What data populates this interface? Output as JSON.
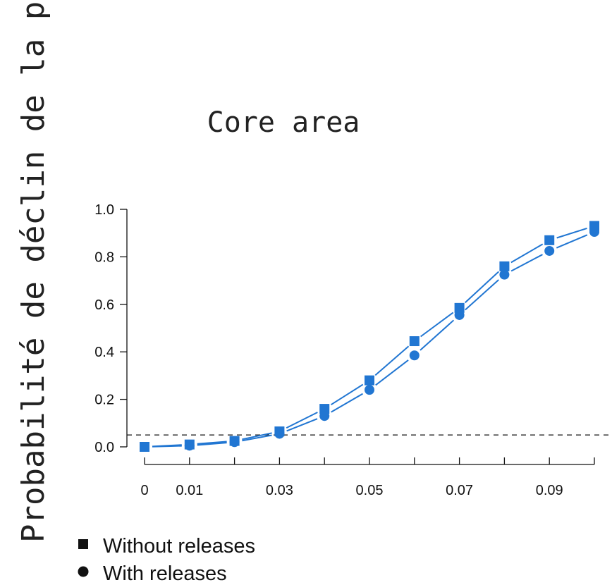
{
  "chart_data": {
    "type": "line",
    "title": "Core area",
    "ylabel": "Probabilité de déclin de la population",
    "xlabel": "",
    "x": [
      0,
      0.01,
      0.02,
      0.03,
      0.04,
      0.05,
      0.06,
      0.07,
      0.08,
      0.09,
      0.1
    ],
    "x_tick_labels": [
      "0",
      "0.01",
      "0.03",
      "0.05",
      "0.07",
      "0.09"
    ],
    "x_tick_label_values": [
      0,
      0.01,
      0.03,
      0.05,
      0.07,
      0.09
    ],
    "y_ticks": [
      0.0,
      0.2,
      0.4,
      0.6,
      0.8,
      1.0
    ],
    "y_tick_labels": [
      "0.0",
      "0.2",
      "0.4",
      "0.6",
      "0.8",
      "1.0"
    ],
    "xlim": [
      0,
      0.1
    ],
    "ylim": [
      0,
      1
    ],
    "grid": false,
    "legend_position": "bottom-left",
    "threshold_line": 0.05,
    "series": [
      {
        "name": "Without releases",
        "marker": "square",
        "color": "#2176d2",
        "values": [
          0.0,
          0.01,
          0.025,
          0.065,
          0.16,
          0.28,
          0.445,
          0.585,
          0.76,
          0.87,
          0.93
        ]
      },
      {
        "name": "With releases",
        "marker": "circle",
        "color": "#2176d2",
        "values": [
          0.0,
          0.005,
          0.02,
          0.055,
          0.13,
          0.24,
          0.385,
          0.555,
          0.725,
          0.825,
          0.905
        ]
      }
    ]
  }
}
